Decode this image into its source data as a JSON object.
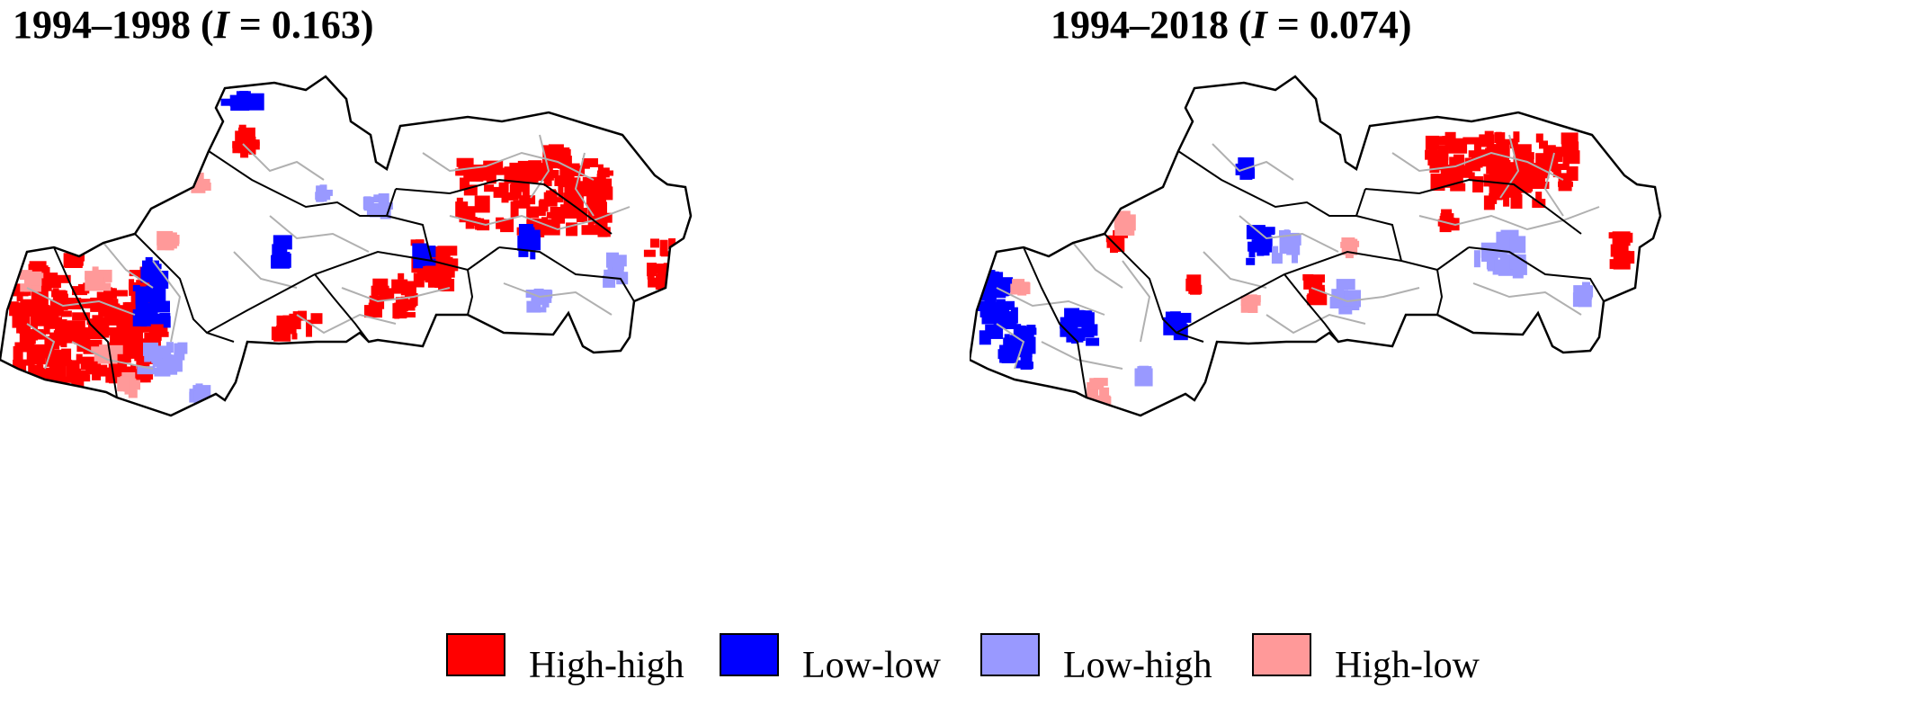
{
  "panels": [
    {
      "period": "1994–1998",
      "stat_symbol": "I",
      "stat_value": "0.163"
    },
    {
      "period": "1994–2018",
      "stat_symbol": "I",
      "stat_value": "0.074"
    }
  ],
  "legend": [
    {
      "label": "High-high",
      "color": "#ff0000"
    },
    {
      "label": "Low-low",
      "color": "#0000ff"
    },
    {
      "label": "Low-high",
      "color": "#9999ff"
    },
    {
      "label": "High-low",
      "color": "#ff9999"
    }
  ],
  "colors": {
    "outline": "#000000",
    "district_border": "#b0b0b0",
    "background": "#ffffff"
  }
}
